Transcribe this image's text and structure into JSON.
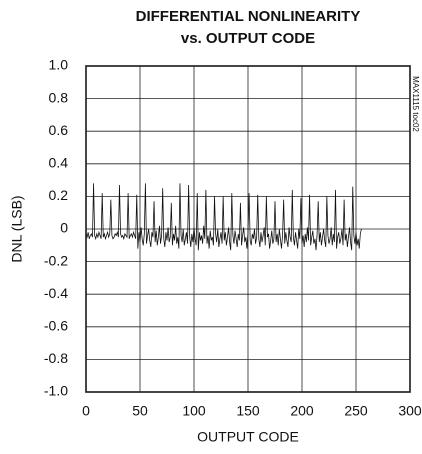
{
  "chart_data": {
    "type": "line",
    "title": "DIFFERENTIAL NONLINEARITY",
    "subtitle": "vs. OUTPUT CODE",
    "x_label": "OUTPUT CODE",
    "y_label": "DNL (LSB)",
    "annotation": "MAX1115 toc02",
    "xlim": [
      0,
      300
    ],
    "xticks": [
      0,
      50,
      100,
      150,
      200,
      250,
      300
    ],
    "ylim": [
      -1,
      1
    ],
    "yticks": [
      {
        "value": -1,
        "label": "-1.0"
      },
      -0.8,
      -0.6,
      -0.4,
      -0.2,
      0,
      0.2,
      0.4,
      0.6,
      0.8,
      {
        "value": 1,
        "label": "1.0"
      }
    ],
    "grid": true,
    "x": [
      0,
      1,
      2,
      3,
      4,
      5,
      6,
      7,
      8,
      9,
      10,
      11,
      12,
      13,
      14,
      15,
      16,
      17,
      18,
      19,
      20,
      21,
      22,
      23,
      24,
      25,
      26,
      27,
      28,
      29,
      30,
      31,
      32,
      33,
      34,
      35,
      36,
      37,
      38,
      39,
      40,
      41,
      42,
      43,
      44,
      45,
      46,
      47,
      48,
      49,
      50,
      51,
      52,
      53,
      54,
      55,
      56,
      57,
      58,
      59,
      60,
      61,
      62,
      63,
      64,
      65,
      66,
      67,
      68,
      69,
      70,
      71,
      72,
      73,
      74,
      75,
      76,
      77,
      78,
      79,
      80,
      81,
      82,
      83,
      84,
      85,
      86,
      87,
      88,
      89,
      90,
      91,
      92,
      93,
      94,
      95,
      96,
      97,
      98,
      99,
      100,
      101,
      102,
      103,
      104,
      105,
      106,
      107,
      108,
      109,
      110,
      111,
      112,
      113,
      114,
      115,
      116,
      117,
      118,
      119,
      120,
      121,
      122,
      123,
      124,
      125,
      126,
      127,
      128,
      129,
      130,
      131,
      132,
      133,
      134,
      135,
      136,
      137,
      138,
      139,
      140,
      141,
      142,
      143,
      144,
      145,
      146,
      147,
      148,
      149,
      150,
      151,
      152,
      153,
      154,
      155,
      156,
      157,
      158,
      159,
      160,
      161,
      162,
      163,
      164,
      165,
      166,
      167,
      168,
      169,
      170,
      171,
      172,
      173,
      174,
      175,
      176,
      177,
      178,
      179,
      180,
      181,
      182,
      183,
      184,
      185,
      186,
      187,
      188,
      189,
      190,
      191,
      192,
      193,
      194,
      195,
      196,
      197,
      198,
      199,
      200,
      201,
      202,
      203,
      204,
      205,
      206,
      207,
      208,
      209,
      210,
      211,
      212,
      213,
      214,
      215,
      216,
      217,
      218,
      219,
      220,
      221,
      222,
      223,
      224,
      225,
      226,
      227,
      228,
      229,
      230,
      231,
      232,
      233,
      234,
      235,
      236,
      237,
      238,
      239,
      240,
      241,
      242,
      243,
      244,
      245,
      246,
      247,
      248,
      249,
      250,
      251,
      252,
      253,
      254,
      255
    ],
    "series": [
      {
        "name": "DNL",
        "color": "#111111",
        "values": [
          -0.03,
          -0.05,
          -0.02,
          -0.06,
          -0.04,
          -0.03,
          -0.05,
          0.28,
          -0.04,
          -0.06,
          -0.03,
          -0.05,
          -0.02,
          -0.04,
          -0.06,
          0.22,
          -0.05,
          -0.03,
          -0.06,
          -0.04,
          -0.02,
          -0.05,
          -0.03,
          0.18,
          -0.04,
          -0.06,
          -0.05,
          -0.03,
          -0.04,
          -0.02,
          -0.05,
          0.27,
          -0.03,
          -0.05,
          -0.04,
          -0.06,
          -0.03,
          -0.04,
          -0.05,
          0.22,
          -0.06,
          -0.04,
          -0.03,
          -0.05,
          -0.02,
          -0.04,
          -0.06,
          0.21,
          -0.12,
          -0.02,
          -0.08,
          0.01,
          -0.06,
          -0.1,
          -0.03,
          0.28,
          -0.09,
          -0.04,
          0.0,
          -0.07,
          -0.11,
          -0.02,
          -0.05,
          0.17,
          -0.08,
          -0.01,
          -0.1,
          -0.05,
          0.02,
          -0.09,
          -0.04,
          0.25,
          -0.06,
          -0.11,
          -0.02,
          -0.07,
          0.01,
          -0.08,
          -0.05,
          0.16,
          -0.1,
          -0.03,
          -0.07,
          0.02,
          -0.09,
          -0.05,
          -0.12,
          0.28,
          -0.04,
          -0.08,
          0.0,
          -0.1,
          -0.06,
          -0.02,
          -0.09,
          0.27,
          -0.05,
          -0.11,
          -0.03,
          -0.08,
          0.01,
          -0.06,
          -0.1,
          0.22,
          -0.13,
          -0.02,
          -0.07,
          -0.04,
          -0.09,
          0.02,
          -0.06,
          0.24,
          -0.09,
          -0.04,
          -0.12,
          -0.01,
          -0.07,
          -0.05,
          -0.1,
          0.2,
          -0.03,
          -0.08,
          0.0,
          -0.11,
          -0.06,
          -0.02,
          -0.09,
          0.2,
          -0.07,
          -0.02,
          -0.1,
          -0.05,
          0.01,
          -0.08,
          -0.13,
          0.22,
          -0.04,
          -0.09,
          -0.01,
          -0.06,
          -0.11,
          -0.03,
          -0.07,
          0.16,
          -0.1,
          -0.04,
          0.01,
          -0.08,
          -0.05,
          -0.12,
          -0.02,
          0.22,
          -0.07,
          -0.1,
          -0.03,
          -0.06,
          0.0,
          -0.09,
          -0.05,
          0.21,
          -0.06,
          -0.11,
          -0.02,
          -0.08,
          -0.04,
          0.01,
          -0.1,
          0.2,
          -0.05,
          -0.03,
          -0.12,
          -0.07,
          -0.01,
          -0.09,
          -0.06,
          0.17,
          -0.08,
          -0.03,
          -0.1,
          0.0,
          -0.06,
          -0.12,
          -0.04,
          0.18,
          -0.09,
          -0.02,
          -0.07,
          -0.11,
          0.01,
          -0.05,
          -0.08,
          0.24,
          -0.05,
          -0.1,
          -0.02,
          -0.07,
          -0.12,
          0.0,
          -0.06,
          0.19,
          -0.09,
          -0.04,
          -0.11,
          -0.03,
          -0.08,
          0.01,
          -0.07,
          0.21,
          -0.1,
          -0.05,
          -0.01,
          -0.09,
          -0.06,
          -0.13,
          -0.03,
          0.17,
          -0.08,
          -0.02,
          -0.1,
          -0.05,
          0.0,
          -0.07,
          -0.11,
          0.2,
          -0.04,
          -0.09,
          -0.06,
          0.01,
          -0.1,
          -0.03,
          -0.08,
          0.24,
          -0.12,
          -0.05,
          -0.02,
          -0.09,
          -0.06,
          0.0,
          -0.1,
          0.18,
          -0.07,
          -0.03,
          -0.11,
          -0.05,
          0.01,
          -0.08,
          -0.13,
          0.26,
          -0.04,
          -0.09,
          -0.02,
          -0.1,
          -0.06,
          -0.12,
          -0.03,
          0.0
        ]
      }
    ]
  }
}
